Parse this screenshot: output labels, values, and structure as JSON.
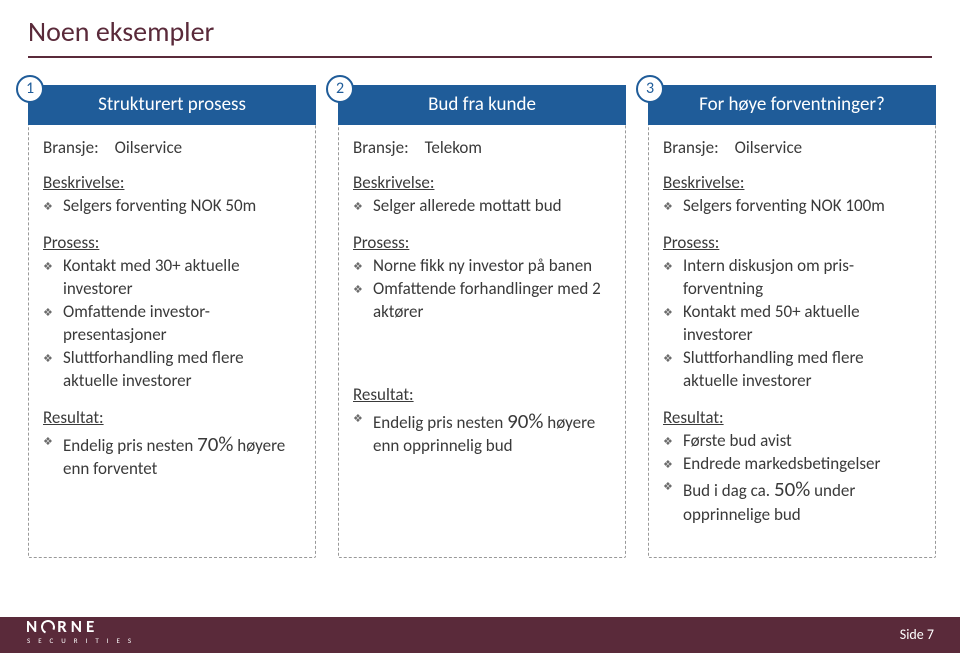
{
  "colors": {
    "brand": "#5a2a3a",
    "accent": "#1f5c99",
    "text": "#3a3a3a",
    "underline": "#5a2a3a",
    "dash": "#999999",
    "bullet": "#6b6b6b"
  },
  "title": "Noen eksempler",
  "footer": {
    "logo_main": "NORNE",
    "logo_sub": "SECURITIES",
    "page": "Side 7"
  },
  "cards": [
    {
      "badge": "1",
      "header": "Strukturert prosess",
      "bransje_label": "Bransje:",
      "bransje_value": "Oilservice",
      "beskrivelse_label": "Beskrivelse:",
      "beskrivelse": [
        "Selgers forventing NOK 50m"
      ],
      "prosess_label": "Prosess:",
      "prosess": [
        "Kontakt med 30+ aktuelle investorer",
        "Omfattende investor-presentasjoner",
        "Sluttforhandling med flere aktuelle investorer"
      ],
      "resultat_label": "Resultat:",
      "resultat": [
        {
          "pre": "Endelig pris nesten ",
          "big": "70%",
          "post": " høyere enn forventet"
        }
      ]
    },
    {
      "badge": "2",
      "header": "Bud fra kunde",
      "bransje_label": "Bransje:",
      "bransje_value": "Telekom",
      "beskrivelse_label": "Beskrivelse:",
      "beskrivelse": [
        "Selger allerede mottatt bud"
      ],
      "prosess_label": "Prosess:",
      "prosess": [
        "Norne fikk ny investor på banen",
        "Omfattende forhandlinger med 2 aktører"
      ],
      "resultat_label": "Resultat:",
      "resultat": [
        {
          "pre": "Endelig pris nesten ",
          "big": "90%",
          "post": " høyere enn opprinnelig bud"
        }
      ]
    },
    {
      "badge": "3",
      "header": "For høye forventninger?",
      "bransje_label": "Bransje:",
      "bransje_value": "Oilservice",
      "beskrivelse_label": "Beskrivelse:",
      "beskrivelse": [
        "Selgers forventing NOK 100m"
      ],
      "prosess_label": "Prosess:",
      "prosess": [
        "Intern diskusjon om pris-forventning",
        "Kontakt med 50+ aktuelle investorer",
        "Sluttforhandling med flere aktuelle investorer"
      ],
      "resultat_label": "Resultat:",
      "resultat": [
        {
          "pre": "Første bud avist",
          "big": "",
          "post": ""
        },
        {
          "pre": "Endrede markedsbetingelser",
          "big": "",
          "post": ""
        },
        {
          "pre": "Bud i dag ca. ",
          "big": "50%",
          "post": " under opprinnelige bud"
        }
      ]
    }
  ]
}
